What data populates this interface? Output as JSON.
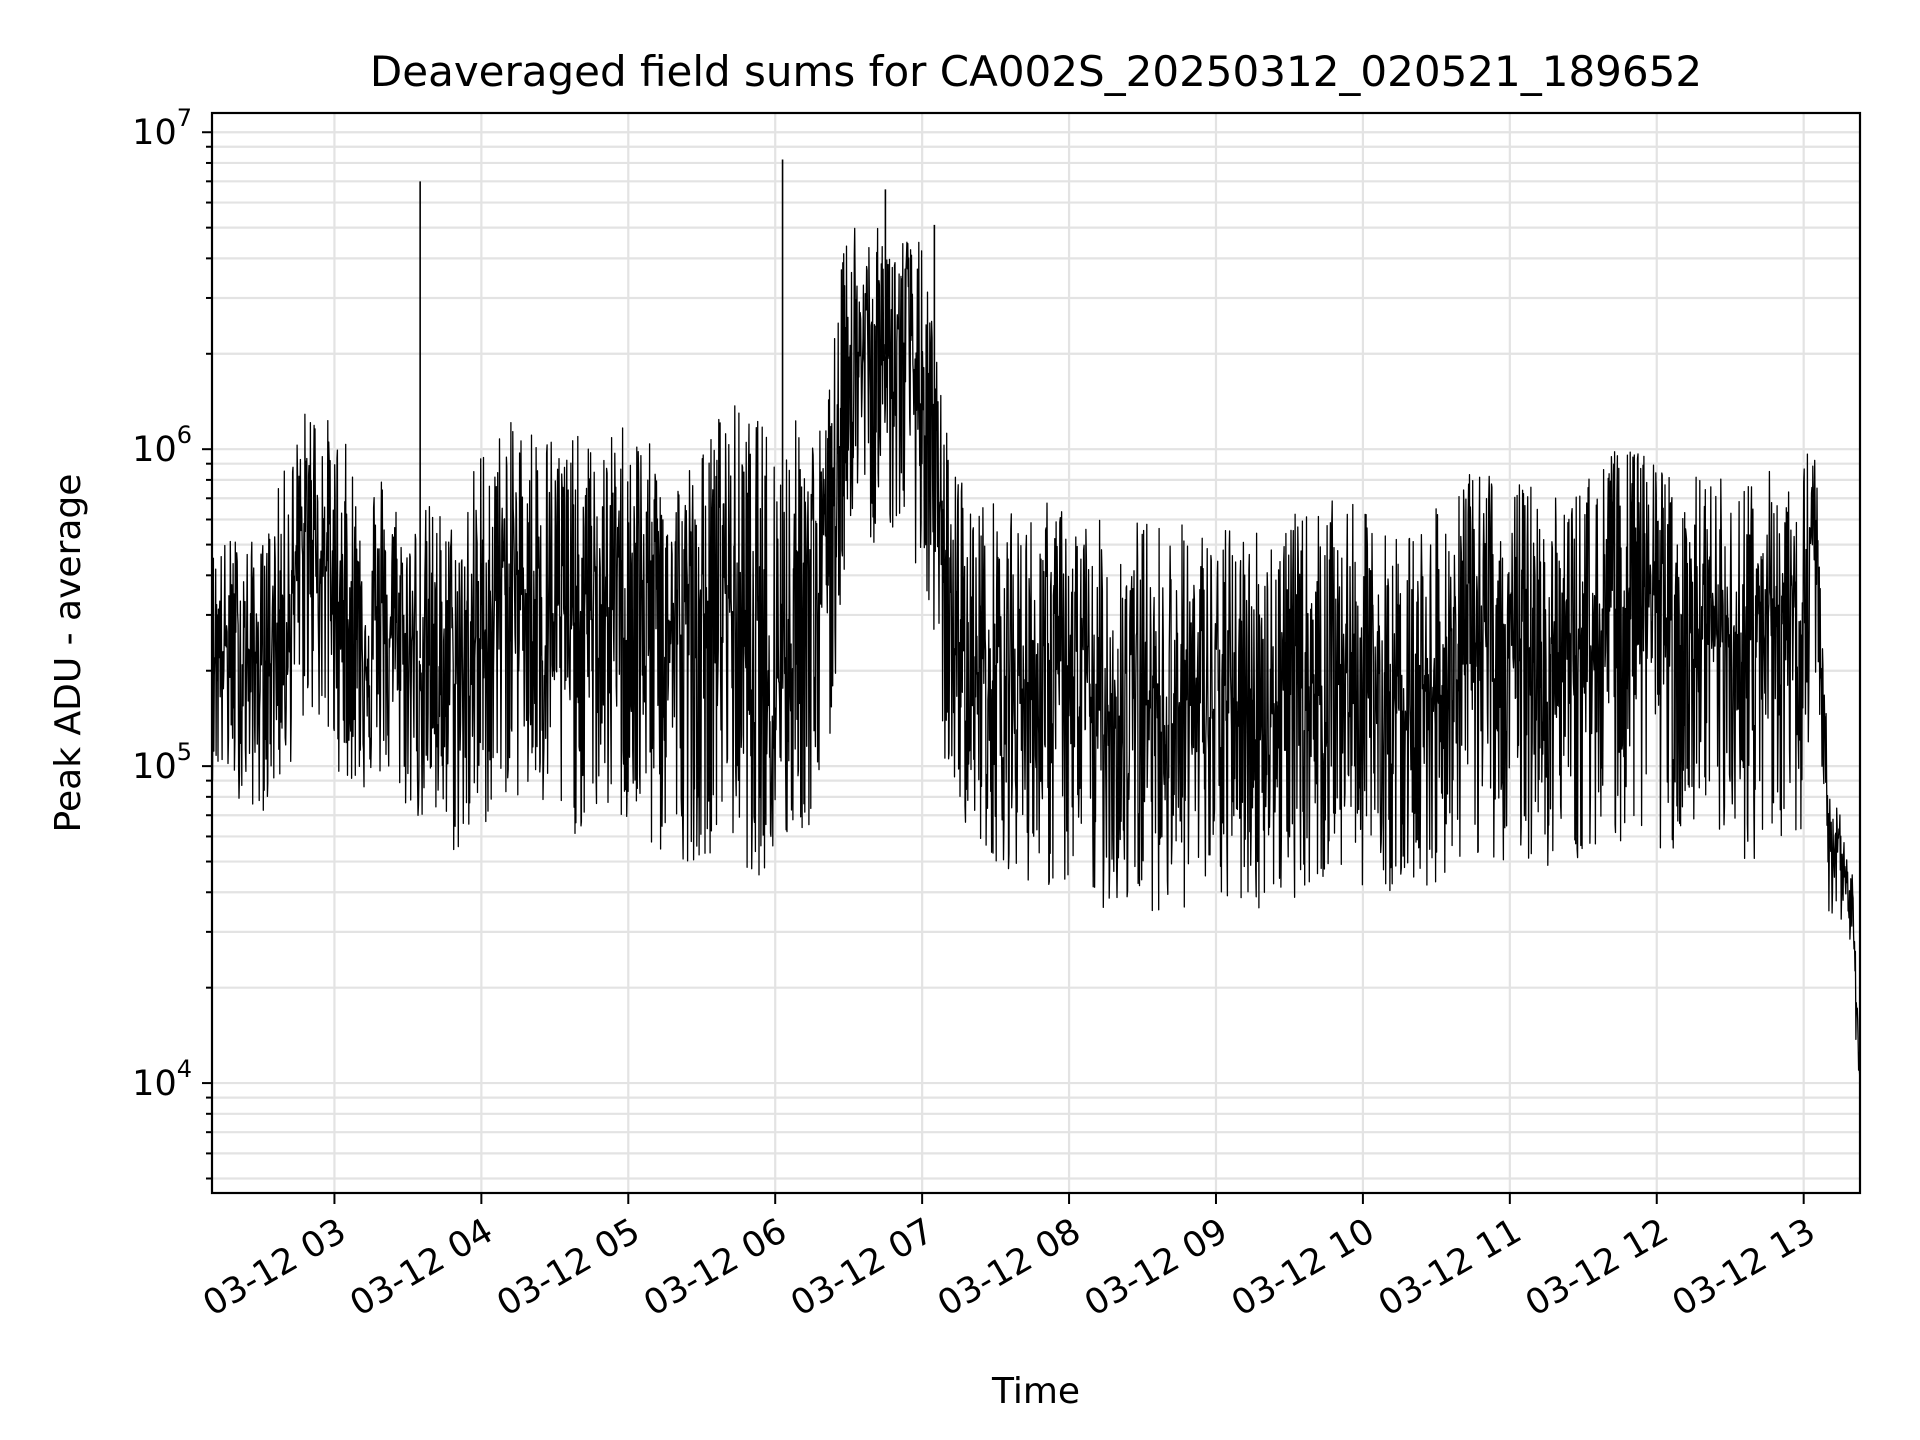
{
  "chart_data": {
    "type": "line",
    "title": "Deaveraged field sums for CA002S_20250312_020521_189652",
    "xlabel": "Time",
    "ylabel": "Peak ADU - average",
    "yscale": "log",
    "ylim": [
      4500,
      11500000
    ],
    "xlim": [
      "2025-03-12 02:10",
      "2025-03-12 13:23"
    ],
    "x_ticks": [
      "03-12 03",
      "03-12 04",
      "03-12 05",
      "03-12 06",
      "03-12 07",
      "03-12 08",
      "03-12 09",
      "03-12 10",
      "03-12 11",
      "03-12 12",
      "03-12 13"
    ],
    "y_ticks": [
      {
        "value": 10000,
        "base": "10",
        "exp": "4"
      },
      {
        "value": 100000,
        "base": "10",
        "exp": "5"
      },
      {
        "value": 1000000,
        "base": "10",
        "exp": "6"
      },
      {
        "value": 10000000,
        "base": "10",
        "exp": "7"
      }
    ],
    "grid": true,
    "line_color": "#000000",
    "series": [
      {
        "x": [
          "02:10",
          "02:20",
          "02:30",
          "02:40",
          "02:50",
          "03:00",
          "03:10",
          "03:20",
          "03:30",
          "03:40",
          "03:50",
          "04:00",
          "04:10",
          "04:20",
          "04:30",
          "04:40",
          "04:50",
          "05:00",
          "05:10",
          "05:20",
          "05:30",
          "05:40",
          "05:50",
          "06:00",
          "06:10",
          "06:20",
          "06:30",
          "06:40",
          "06:50",
          "07:00",
          "07:10",
          "07:20",
          "07:30",
          "07:40",
          "07:50",
          "08:00",
          "08:10",
          "08:20",
          "08:30",
          "08:40",
          "08:50",
          "09:00",
          "09:10",
          "09:20",
          "09:30",
          "09:40",
          "09:50",
          "10:00",
          "10:10",
          "10:20",
          "10:30",
          "10:40",
          "10:50",
          "11:00",
          "11:10",
          "11:20",
          "11:30",
          "11:40",
          "11:50",
          "12:00",
          "12:10",
          "12:20",
          "12:30",
          "12:40",
          "12:50",
          "13:00",
          "13:05",
          "13:10",
          "13:15",
          "13:20",
          "13:23"
        ],
        "typical": [
          250000,
          230000,
          210000,
          300000,
          600000,
          350000,
          250000,
          260000,
          240000,
          200000,
          190000,
          250000,
          400000,
          350000,
          300000,
          280000,
          300000,
          350000,
          300000,
          260000,
          280000,
          400000,
          200000,
          200000,
          300000,
          400000,
          2000000,
          1800000,
          2200000,
          1600000,
          300000,
          200000,
          200000,
          180000,
          200000,
          180000,
          150000,
          150000,
          160000,
          150000,
          160000,
          140000,
          160000,
          150000,
          170000,
          180000,
          200000,
          180000,
          150000,
          160000,
          180000,
          200000,
          250000,
          230000,
          220000,
          210000,
          230000,
          280000,
          350000,
          330000,
          250000,
          240000,
          230000,
          260000,
          280000,
          300000,
          600000,
          70000,
          55000,
          35000,
          10000
        ],
        "high": [
          500000,
          550000,
          500000,
          900000,
          1500000,
          1200000,
          900000,
          900000,
          600000,
          700000,
          600000,
          1100000,
          1200000,
          1300000,
          1200000,
          1100000,
          1000000,
          1400000,
          1000000,
          900000,
          1000000,
          1500000,
          1300000,
          1200000,
          1300000,
          1200000,
          6000000,
          5000000,
          5000000,
          4500000,
          1200000,
          700000,
          700000,
          600000,
          700000,
          650000,
          600000,
          600000,
          620000,
          600000,
          600000,
          550000,
          600000,
          600000,
          620000,
          650000,
          700000,
          650000,
          550000,
          600000,
          650000,
          800000,
          900000,
          800000,
          800000,
          700000,
          800000,
          1000000,
          1000000,
          950000,
          800000,
          850000,
          800000,
          850000,
          900000,
          1000000,
          1100000,
          100000,
          70000,
          45000,
          12000
        ],
        "low": [
          90000,
          80000,
          70000,
          90000,
          150000,
          100000,
          80000,
          90000,
          70000,
          60000,
          50000,
          60000,
          80000,
          70000,
          60000,
          60000,
          70000,
          60000,
          50000,
          50000,
          50000,
          60000,
          45000,
          45000,
          60000,
          60000,
          600000,
          500000,
          550000,
          400000,
          90000,
          60000,
          50000,
          45000,
          40000,
          40000,
          35000,
          35000,
          35000,
          35000,
          35000,
          35000,
          35000,
          35000,
          38000,
          40000,
          45000,
          42000,
          40000,
          40000,
          42000,
          50000,
          50000,
          50000,
          50000,
          45000,
          50000,
          55000,
          60000,
          55000,
          50000,
          50000,
          45000,
          50000,
          55000,
          60000,
          200000,
          35000,
          30000,
          20000,
          8000
        ]
      }
    ],
    "spikes": [
      {
        "x": "03:35",
        "y": 7000000
      },
      {
        "x": "06:03",
        "y": 8200000
      },
      {
        "x": "06:45",
        "y": 6600000
      },
      {
        "x": "07:05",
        "y": 5100000
      }
    ]
  }
}
